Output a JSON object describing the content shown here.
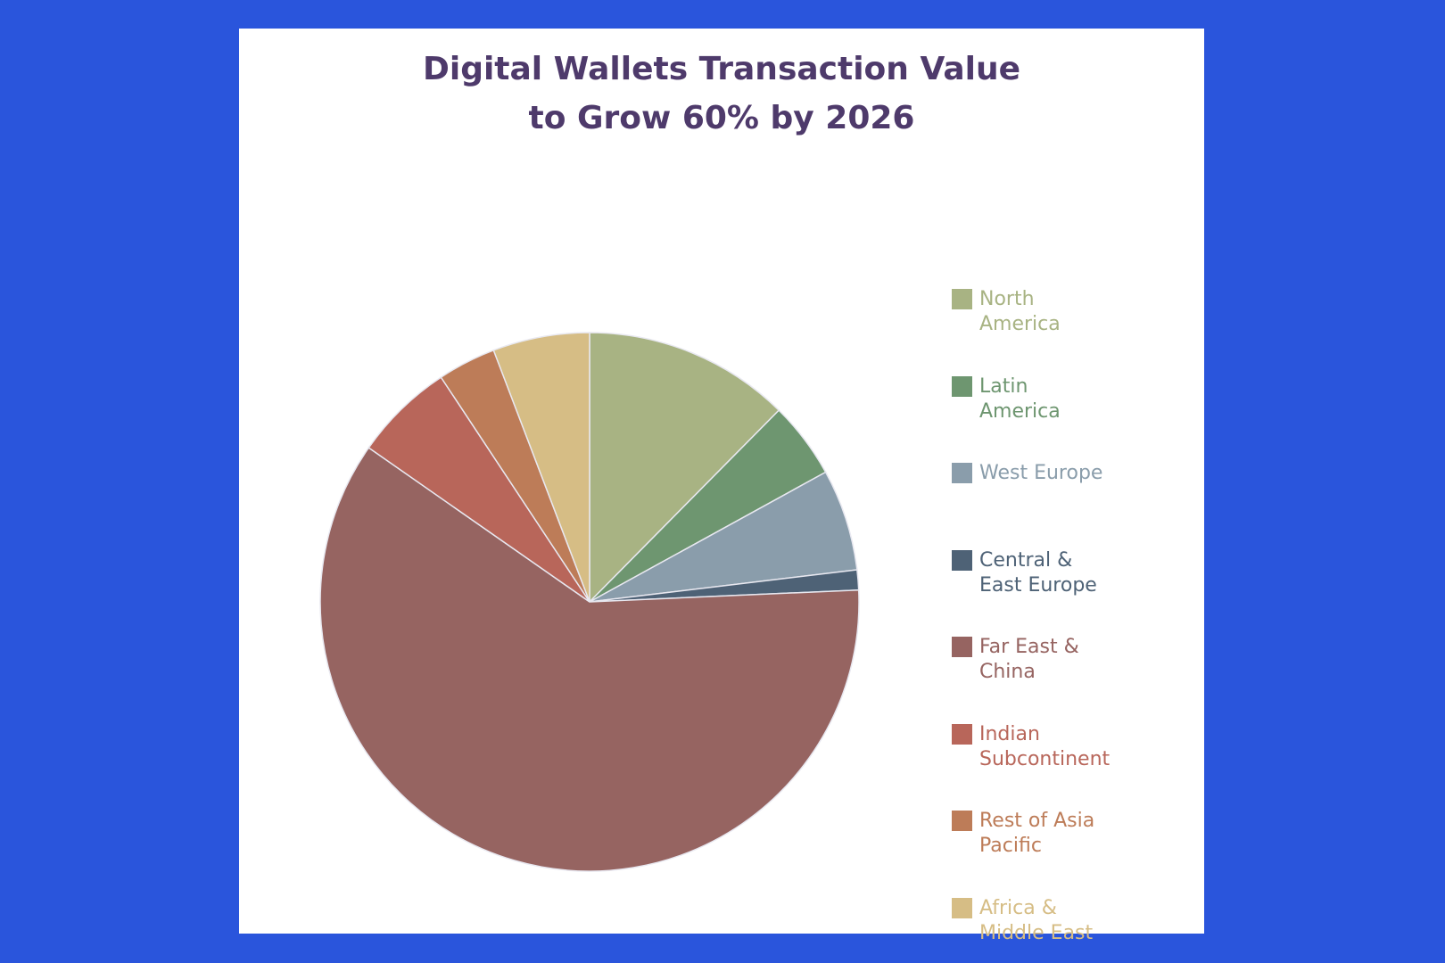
{
  "chart_data": {
    "type": "pie",
    "title": "Digital Wallets Transaction Value\nto Grow 60% by 2026",
    "start_angle": "top",
    "direction": "clockwise",
    "series": [
      {
        "name": "North\nAmerica",
        "color": "#a8b383",
        "values": [
          12.4
        ]
      },
      {
        "name": "Latin\nAmerica",
        "color": "#6e9670",
        "values": [
          4.6
        ]
      },
      {
        "name": "West Europe",
        "color": "#8a9dab",
        "values": [
          6.1
        ]
      },
      {
        "name": "Central &\nEast Europe",
        "color": "#4e6276",
        "values": [
          1.2
        ]
      },
      {
        "name": "Far East &\nChina",
        "color": "#966461",
        "values": [
          60.4
        ]
      },
      {
        "name": "Indian\nSubcontinent",
        "color": "#b8665a",
        "values": [
          6.0
        ]
      },
      {
        "name": "Rest of Asia\nPacific",
        "color": "#bd7c58",
        "values": [
          3.5
        ]
      },
      {
        "name": "Africa &\nMiddle East",
        "color": "#d6bd85",
        "values": [
          5.8
        ]
      }
    ],
    "legend": "right"
  }
}
